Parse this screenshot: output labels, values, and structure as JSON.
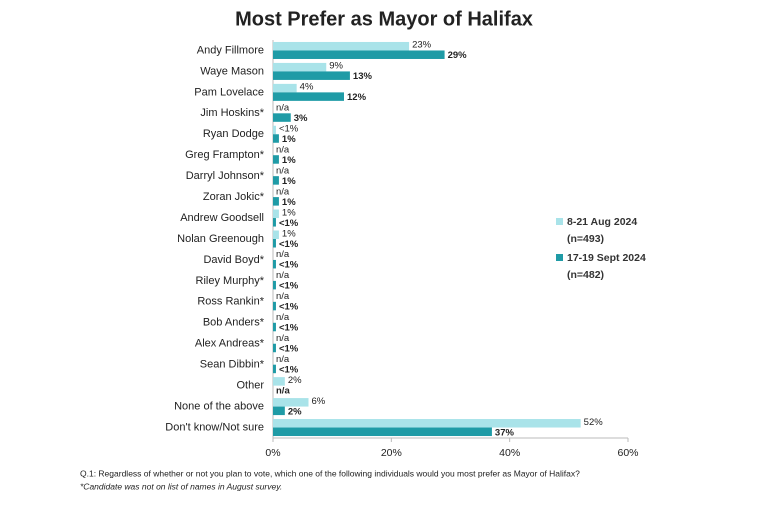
{
  "chart_data": {
    "type": "bar",
    "orientation": "horizontal",
    "title": "Most Prefer as Mayor of Halifax",
    "categories": [
      "Andy Fillmore",
      "Waye Mason",
      "Pam Lovelace",
      "Jim Hoskins*",
      "Ryan Dodge",
      "Greg Frampton*",
      "Darryl Johnson*",
      "Zoran Jokic*",
      "Andrew Goodsell",
      "Nolan Greenough",
      "David Boyd*",
      "Riley Murphy*",
      "Ross Rankin*",
      "Bob Anders*",
      "Alex Andreas*",
      "Sean Dibbin*",
      "Other",
      "None of the above",
      "Don't know/Not sure"
    ],
    "series": [
      {
        "name": "8-21 Aug 2024",
        "sample": "(n=493)",
        "color": "#a9e3e9",
        "values": [
          23,
          9,
          4,
          null,
          0.5,
          null,
          null,
          null,
          1,
          1,
          null,
          null,
          null,
          null,
          null,
          null,
          2,
          6,
          52
        ],
        "value_labels": [
          "23%",
          "9%",
          "4%",
          "n/a",
          "<1%",
          "n/a",
          "n/a",
          "n/a",
          "1%",
          "1%",
          "n/a",
          "n/a",
          "n/a",
          "n/a",
          "n/a",
          "n/a",
          "2%",
          "6%",
          "52%"
        ]
      },
      {
        "name": "17-19 Sept 2024",
        "sample": "(n=482)",
        "color": "#1f9ba6",
        "values": [
          29,
          13,
          12,
          3,
          1,
          1,
          1,
          1,
          0.5,
          0.5,
          0.5,
          0.5,
          0.5,
          0.5,
          0.5,
          0.5,
          null,
          2,
          37
        ],
        "value_labels": [
          "29%",
          "13%",
          "12%",
          "3%",
          "1%",
          "1%",
          "1%",
          "1%",
          "<1%",
          "<1%",
          "<1%",
          "<1%",
          "<1%",
          "<1%",
          "<1%",
          "<1%",
          "n/a",
          "2%",
          "37%"
        ]
      }
    ],
    "xlim": [
      0,
      60
    ],
    "xticks": [
      {
        "value": 0,
        "label": "0%"
      },
      {
        "value": 20,
        "label": "20%"
      },
      {
        "value": 40,
        "label": "40%"
      },
      {
        "value": 60,
        "label": "60%"
      }
    ],
    "legend": "right",
    "notes": [
      "Q.1: Regardless of whether or not you plan to vote, which one of the following individuals would you most prefer as Mayor of Halifax?",
      "*Candidate was not on list of names in August survey."
    ]
  }
}
